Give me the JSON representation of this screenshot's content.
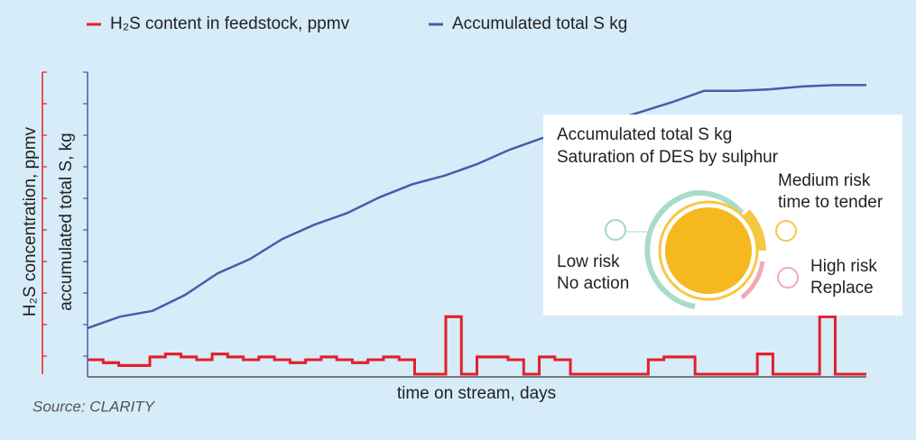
{
  "chart_data": {
    "type": "line",
    "y_label": "accumulated total S, kg",
    "y2_label": "H₂S concentration, ppmv",
    "x_label": "time on stream, days",
    "ylim": [
      0,
      10.5
    ],
    "y2lim": [
      0,
      10.5
    ],
    "series": [
      {
        "name": "H₂S content in feedstock, ppmv",
        "color": "#e3202b",
        "axis": "y2",
        "step": true,
        "values": [
          0.5,
          0.4,
          0.3,
          0.3,
          0.6,
          0.7,
          0.6,
          0.5,
          0.7,
          0.6,
          0.5,
          0.6,
          0.5,
          0.4,
          0.5,
          0.6,
          0.5,
          0.4,
          0.5,
          0.6,
          0.5,
          0.0,
          0.0,
          2.0,
          0.0,
          0.6,
          0.6,
          0.5,
          0.0,
          0.6,
          0.5,
          0.0,
          0.0,
          0.0,
          0.0,
          0.0,
          0.5,
          0.6,
          0.6,
          0.0,
          0.0,
          0.0,
          0.0,
          0.7,
          0.0,
          0.0,
          0.0,
          2.0,
          0.0,
          0.0
        ]
      },
      {
        "name": "Accumulated total S kg",
        "color": "#4a5ba8",
        "axis": "y",
        "values": [
          1.6,
          2.0,
          2.2,
          2.75,
          3.5,
          4.0,
          4.7,
          5.2,
          5.6,
          6.15,
          6.6,
          6.9,
          7.3,
          7.8,
          8.2,
          8.5,
          8.75,
          9.1,
          9.45,
          9.85,
          9.85,
          9.9,
          10.0,
          10.05,
          10.05
        ]
      }
    ]
  },
  "source": "Source: CLARITY",
  "inset": {
    "title": "Accumulated total S kg",
    "subtitle": "Saturation of DES by sulphur",
    "low": [
      "Low risk",
      "No action"
    ],
    "medium": [
      "Medium risk",
      "time to tender"
    ],
    "high": [
      "High risk",
      "Replace"
    ]
  }
}
